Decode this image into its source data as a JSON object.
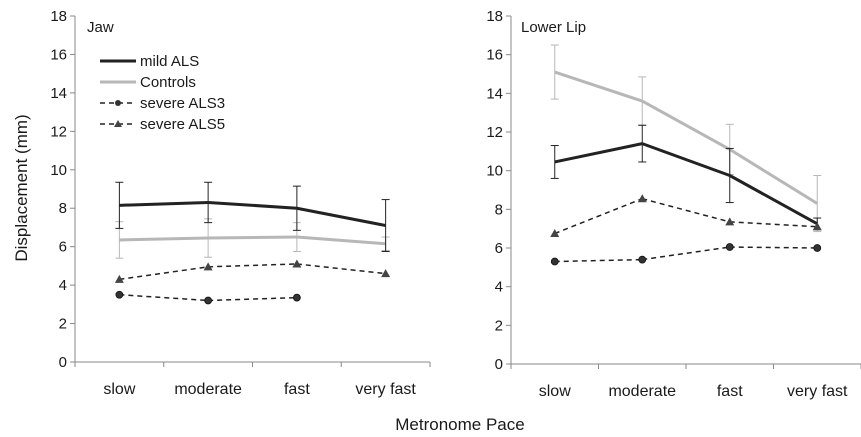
{
  "chart_data": [
    {
      "type": "line",
      "title": "Jaw",
      "xlabel": "Metronome Pace",
      "ylabel": "Displacement (mm)",
      "categories": [
        "slow",
        "moderate",
        "fast",
        "very fast"
      ],
      "ylim": [
        0,
        18
      ],
      "yticks": [
        0,
        2,
        4,
        6,
        8,
        10,
        12,
        14,
        16,
        18
      ],
      "grid": false,
      "legend_position": "top-left",
      "series": [
        {
          "name": "mild ALS",
          "values": [
            8.15,
            8.3,
            8.0,
            7.1
          ],
          "errors": [
            1.2,
            1.05,
            1.15,
            1.35
          ],
          "color": "#222222",
          "style": "solid",
          "marker": "none",
          "width": 3
        },
        {
          "name": "Controls",
          "values": [
            6.35,
            6.45,
            6.5,
            6.15
          ],
          "errors": [
            0.95,
            1.0,
            0.75,
            0.35
          ],
          "color": "#b7b7b7",
          "style": "solid",
          "marker": "none",
          "width": 3
        },
        {
          "name": "severe ALS3",
          "values": [
            3.5,
            3.2,
            3.35,
            null
          ],
          "color": "#222222",
          "style": "dashed",
          "marker": "circle",
          "width": 1.5
        },
        {
          "name": "severe ALS5",
          "values": [
            4.3,
            4.95,
            5.1,
            4.6
          ],
          "color": "#222222",
          "style": "dashed",
          "marker": "triangle",
          "width": 1.5
        }
      ]
    },
    {
      "type": "line",
      "title": "Lower Lip",
      "xlabel": "Metronome Pace",
      "ylabel": "",
      "categories": [
        "slow",
        "moderate",
        "fast",
        "very fast"
      ],
      "ylim": [
        0,
        18
      ],
      "yticks": [
        0,
        2,
        4,
        6,
        8,
        10,
        12,
        14,
        16,
        18
      ],
      "grid": false,
      "series": [
        {
          "name": "mild ALS",
          "values": [
            10.45,
            11.4,
            9.75,
            7.25
          ],
          "errors": [
            0.85,
            0.95,
            1.4,
            0.3
          ],
          "color": "#222222",
          "style": "solid",
          "marker": "none",
          "width": 3
        },
        {
          "name": "Controls",
          "values": [
            15.1,
            13.6,
            11.1,
            8.3
          ],
          "errors": [
            1.4,
            1.25,
            1.3,
            1.45
          ],
          "color": "#b7b7b7",
          "style": "solid",
          "marker": "none",
          "width": 3
        },
        {
          "name": "severe ALS3",
          "values": [
            5.3,
            5.4,
            6.05,
            6.0
          ],
          "color": "#222222",
          "style": "dashed",
          "marker": "circle",
          "width": 1.5
        },
        {
          "name": "severe ALS5",
          "values": [
            6.75,
            8.55,
            7.35,
            7.1
          ],
          "color": "#222222",
          "style": "dashed",
          "marker": "triangle",
          "width": 1.5
        }
      ]
    }
  ]
}
